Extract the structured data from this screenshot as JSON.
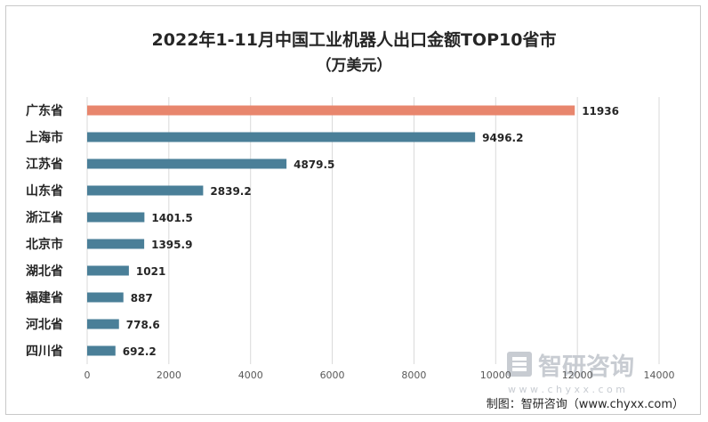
{
  "chart_data": {
    "type": "bar",
    "orientation": "horizontal",
    "title": "2022年1-11月中国工业机器人出口金额TOP10省市",
    "subtitle": "（万美元）",
    "categories": [
      "广东省",
      "上海市",
      "江苏省",
      "山东省",
      "浙江省",
      "北京市",
      "湖北省",
      "福建省",
      "河北省",
      "四川省"
    ],
    "values": [
      11936,
      9496.2,
      4879.5,
      2839.2,
      1401.5,
      1395.9,
      1021,
      887,
      778.6,
      692.2
    ],
    "value_labels": [
      "11936",
      "9496.2",
      "4879.5",
      "2839.2",
      "1401.5",
      "1395.9",
      "1021",
      "887",
      "778.6",
      "692.2"
    ],
    "xlim": [
      0,
      14000
    ],
    "x_ticks": [
      0,
      2000,
      4000,
      6000,
      8000,
      10000,
      12000,
      14000
    ],
    "grid": true,
    "colors": {
      "highlight": "#E8866D",
      "bar": "#4A7F98",
      "grid": "#D9D9D9"
    }
  },
  "watermark": {
    "text": "智研咨询",
    "url": "w w w . c h y x x . c o m"
  },
  "credit": "制图：智研咨询（www.chyxx.com）"
}
